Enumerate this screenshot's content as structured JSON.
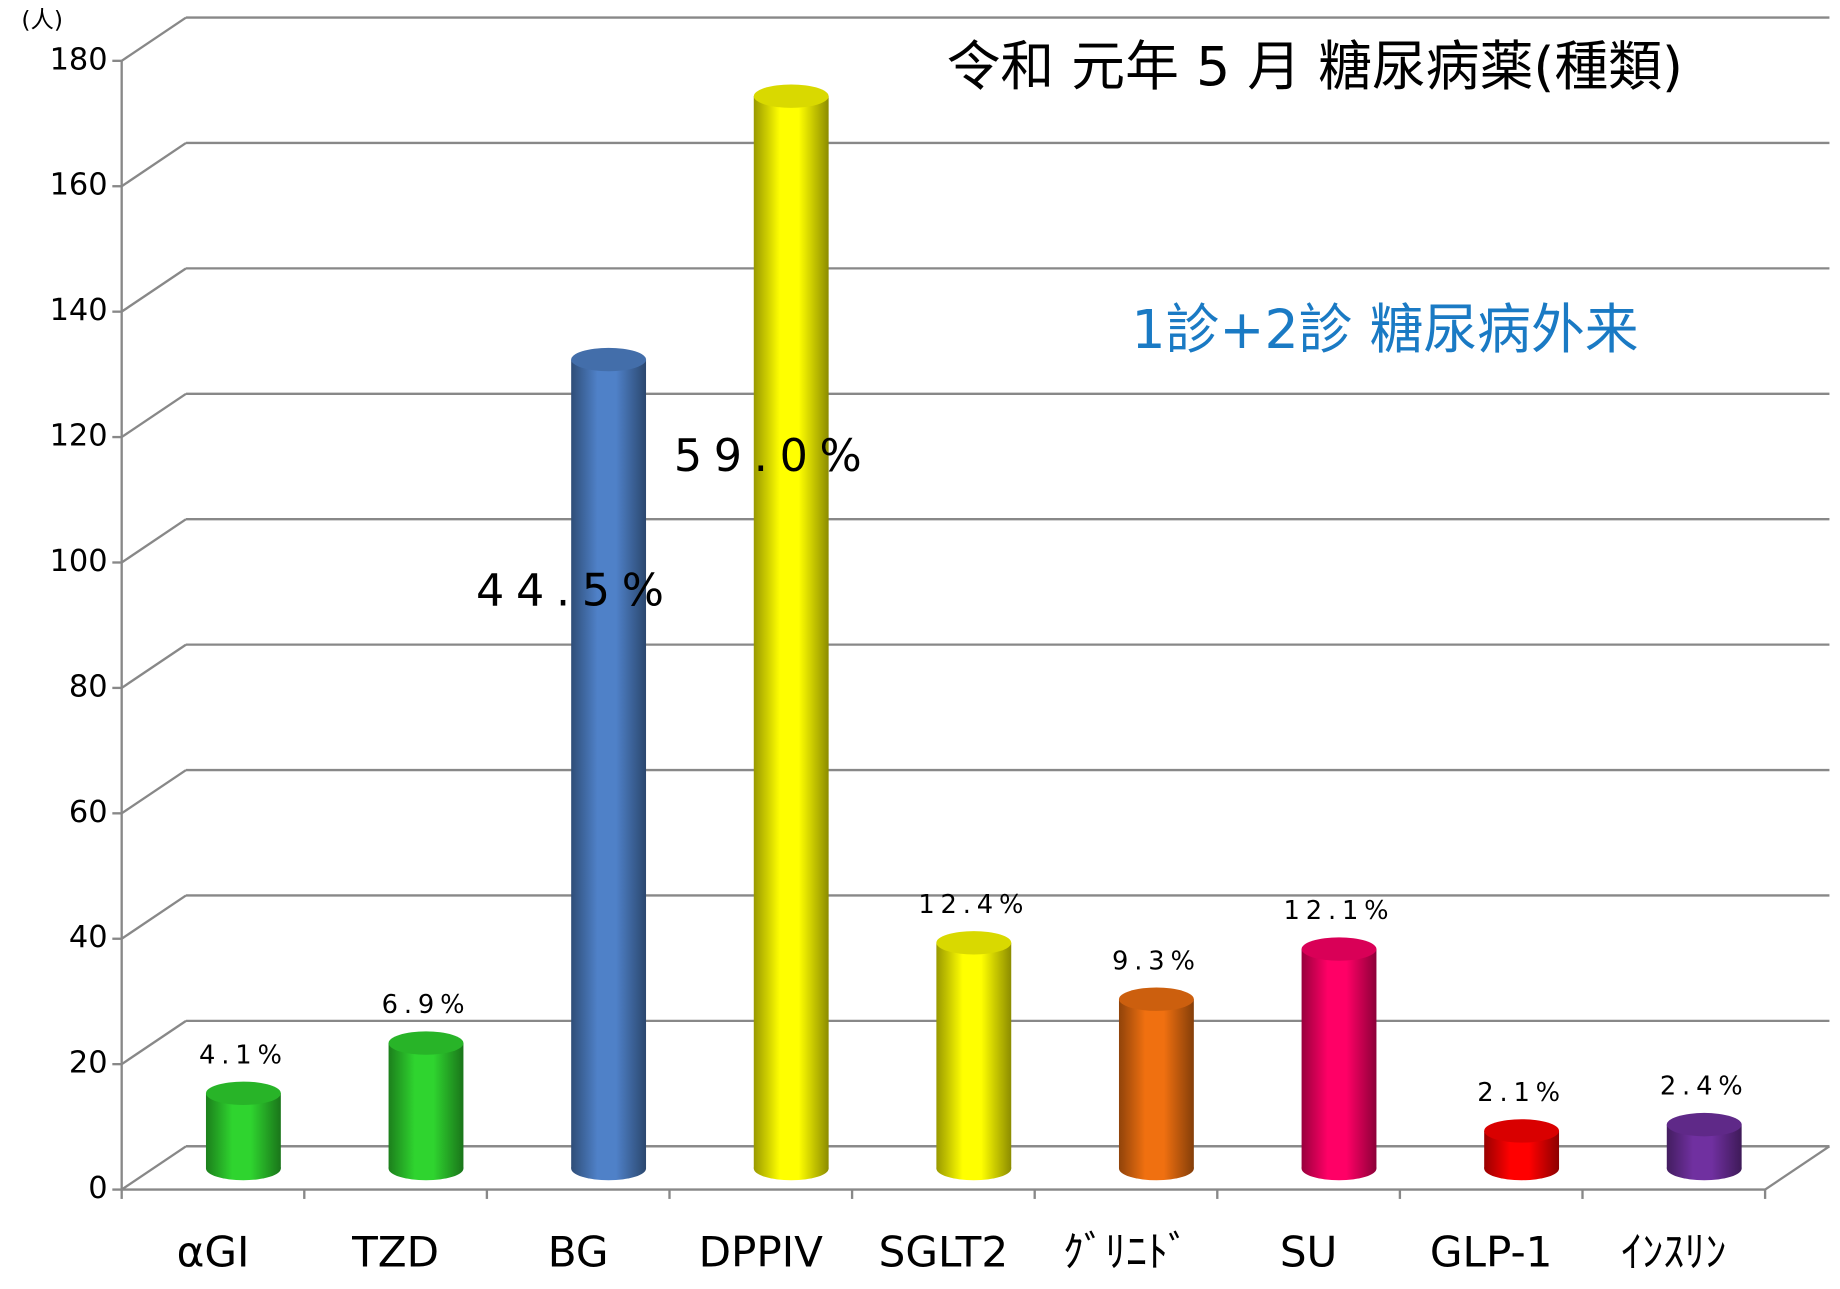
{
  "chart_data": {
    "type": "bar3d",
    "title": "令和 元年 5 月 糖尿病薬(種類)",
    "subtitle": "1診+2診 糖尿病外来",
    "y_unit": "(人)",
    "categories": [
      "αGI",
      "TZD",
      "BG",
      "DPPIV",
      "SGLT2",
      "ｸﾞﾘﾆﾄﾞ",
      "SU",
      "GLP-1",
      "ｲﾝｽﾘﾝ"
    ],
    "values": [
      12,
      20,
      129,
      171,
      36,
      27,
      35,
      6,
      7
    ],
    "value_labels": [
      "4.1%",
      "6.9%",
      "44.5%",
      "59.0%",
      "12.4%",
      "9.3%",
      "12.1%",
      "2.1%",
      "2.4%"
    ],
    "colors": [
      "#2fd42f",
      "#2fd42f",
      "#4f81c8",
      "#ffff00",
      "#ffff00",
      "#f07010",
      "#ff0066",
      "#ff0000",
      "#7030a0"
    ],
    "ylim": [
      0,
      180
    ],
    "yticks": [
      0,
      20,
      40,
      60,
      80,
      100,
      120,
      140,
      160,
      180
    ],
    "grid": true
  }
}
